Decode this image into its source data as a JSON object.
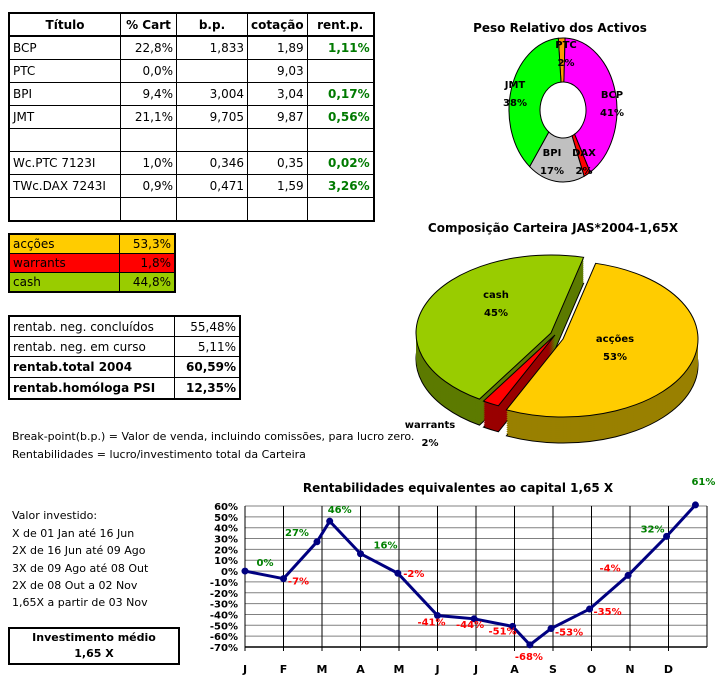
{
  "holdings_table": {
    "headers": [
      "Título",
      "% Cart",
      "b.p.",
      "cotação",
      "rent.p."
    ],
    "rows": [
      [
        "BCP",
        "22,8%",
        "1,833",
        "1,89",
        "1,11%"
      ],
      [
        "PTC",
        "0,0%",
        "",
        "9,03",
        ""
      ],
      [
        "BPI",
        "9,4%",
        "3,004",
        "3,04",
        "0,17%"
      ],
      [
        "JMT",
        "21,1%",
        "9,705",
        "9,87",
        "0,56%"
      ],
      [
        "",
        "",
        "",
        "",
        ""
      ],
      [
        "Wc.PTC 7123I",
        "1,0%",
        "0,346",
        "0,35",
        "0,02%"
      ],
      [
        "TWc.DAX 7243I",
        "0,9%",
        "0,471",
        "1,59",
        "3,26%"
      ],
      [
        "",
        "",
        "",
        "",
        ""
      ]
    ]
  },
  "allocation_table": {
    "rows": [
      {
        "label": "acções",
        "value": "53,3%",
        "color": "#ffcc00"
      },
      {
        "label": "warrants",
        "value": "1,8%",
        "color": "#ff0000"
      },
      {
        "label": "cash",
        "value": "44,8%",
        "color": "#99cc00"
      }
    ]
  },
  "returns_table": {
    "rows": [
      {
        "label": "rentab. neg. concluídos",
        "value": "55,48%"
      },
      {
        "label": "rentab. neg. em curso",
        "value": "5,11%"
      },
      {
        "label": "rentab.total 2004",
        "value": "60,59%"
      },
      {
        "label": "rentab.homóloga PSI",
        "value": "12,35%"
      }
    ]
  },
  "notes": [
    "Break-point(b.p.) = Valor de venda, incluindo comissões, para lucro zero.",
    "Rentabilidades = lucro/investimento total da Carteira"
  ],
  "investment": {
    "title": "Valor investido:",
    "lines": [
      "X de 01 Jan até 16 Jun",
      "2X de 16 Jun até 09 Ago",
      "3X de 09 Ago até 08 Out",
      "2X de 08 Out a 02 Nov",
      "1,65X a partir de 03 Nov"
    ],
    "avg_label": "Investimento médio",
    "avg_value": "1,65 X"
  },
  "chart_data": [
    {
      "type": "pie",
      "style": "doughnut",
      "title": "Peso Relativo dos Activos",
      "slices": [
        {
          "label": "PTC",
          "value": 2,
          "text": "2%",
          "color": "#ff9900"
        },
        {
          "label": "BCP",
          "value": 41,
          "text": "41%",
          "color": "#ff00ff"
        },
        {
          "label": "DAX",
          "value": 2,
          "text": "2%",
          "color": "#ff0000"
        },
        {
          "label": "BPI",
          "value": 17,
          "text": "17%",
          "color": "#c0c0c0"
        },
        {
          "label": "JMT",
          "value": 38,
          "text": "38%",
          "color": "#00ff00"
        }
      ]
    },
    {
      "type": "pie",
      "style": "3d",
      "title": "Composição Carteira JAS*2004-1,65X",
      "slices": [
        {
          "label": "acções",
          "value": 53,
          "text": "53%",
          "color": "#ffcc00",
          "side": "#998000"
        },
        {
          "label": "warrants",
          "value": 2,
          "text": "2%",
          "color": "#ff0000",
          "side": "#990000"
        },
        {
          "label": "cash",
          "value": 45,
          "text": "45%",
          "color": "#99cc00",
          "side": "#5c7a00"
        }
      ]
    },
    {
      "type": "line",
      "title": "Rentabilidades equivalentes ao capital 1,65 X",
      "categories": [
        "J",
        "F",
        "M",
        "A",
        "M",
        "J",
        "J",
        "A",
        "S",
        "O",
        "N",
        "D"
      ],
      "y_ticks": [
        "60%",
        "50%",
        "40%",
        "30%",
        "20%",
        "10%",
        "0%",
        "-10%",
        "-20%",
        "-30%",
        "-40%",
        "-50%",
        "-60%",
        "-70%"
      ],
      "ylim": [
        -70,
        60
      ],
      "grid": true,
      "line_color": "#000080",
      "positive_color": "#008000",
      "negative_color": "#ff0000",
      "points": [
        {
          "x": 0,
          "y": 0,
          "label": "0%"
        },
        {
          "x": 1,
          "y": -7,
          "label": "-7%"
        },
        {
          "x": 1.87,
          "y": 27,
          "label": "27%"
        },
        {
          "x": 2.2,
          "y": 46,
          "label": "46%"
        },
        {
          "x": 3,
          "y": 16,
          "label": "16%"
        },
        {
          "x": 3.97,
          "y": -2,
          "label": "-2%"
        },
        {
          "x": 5,
          "y": -41,
          "label": "-41%"
        },
        {
          "x": 5.95,
          "y": -44,
          "label": "-44%"
        },
        {
          "x": 6.95,
          "y": -51,
          "label": "-51%"
        },
        {
          "x": 7.4,
          "y": -68,
          "label": "-68%"
        },
        {
          "x": 7.95,
          "y": -53,
          "label": "-53%"
        },
        {
          "x": 8.95,
          "y": -35,
          "label": "-35%"
        },
        {
          "x": 9.95,
          "y": -4,
          "label": "-4%"
        },
        {
          "x": 10.95,
          "y": 32,
          "label": "32%"
        },
        {
          "x": 11.7,
          "y": 61,
          "label": "61%"
        }
      ]
    }
  ]
}
